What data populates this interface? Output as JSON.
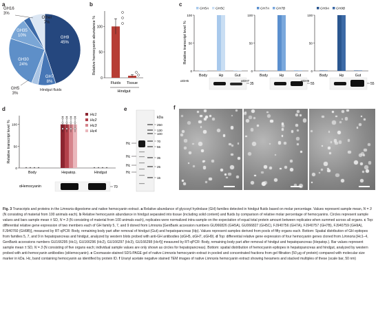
{
  "panels": {
    "a": {
      "letter": "a",
      "footer": "Hindgut fluids",
      "slices": [
        {
          "name": "GH9",
          "pct": "45%",
          "value": 45,
          "color": "#25477e"
        },
        {
          "name": "GH7",
          "pct": "8%",
          "value": 8,
          "color": "#4777b6"
        },
        {
          "name": "GH5",
          "pct": "3%",
          "value": 3,
          "color": "#a9c4e4"
        },
        {
          "name": "GH30",
          "pct": "24%",
          "value": 24,
          "color": "#5e8fc8"
        },
        {
          "name": "GH35",
          "pct": "10%",
          "value": 10,
          "color": "#7aa6d6"
        },
        {
          "name": "GH16",
          "pct": "3%",
          "value": 3,
          "color": "#3b6aa8"
        },
        {
          "name": "Other",
          "pct": "7%",
          "value": 7,
          "color": "#dbe6f3"
        }
      ]
    },
    "b": {
      "letter": "b",
      "ylabel": "Relative hemocyanin abundance %",
      "group": "Hindgut",
      "categories": [
        "Fluids",
        "Tissue"
      ],
      "ticks": [
        "0",
        "50",
        "100"
      ]
    },
    "c": {
      "letter": "c",
      "ylabel": "Relative transcript level %",
      "ticks": [
        "0",
        "50",
        "100"
      ],
      "categories": [
        "Body",
        "Hp",
        "Gut"
      ],
      "legend": [
        [
          "GH5A",
          "GH5C"
        ],
        [
          "GH7A",
          "GH7B"
        ],
        [
          "GH9A",
          "GH9B"
        ]
      ],
      "blots": [
        {
          "label": "αGH5",
          "marker": "35"
        },
        {
          "label": "αGH7",
          "marker": "55"
        },
        {
          "label": "αGH9",
          "marker": "55"
        }
      ]
    },
    "d": {
      "letter": "d",
      "ylabel": "Relative transcript level %",
      "ticks": [
        "0",
        "50",
        "100"
      ],
      "categories": [
        "Body",
        "Hepatop.",
        "Hindgut"
      ],
      "legend": [
        "Hc1",
        "Hc2",
        "Hc3",
        "Hc4"
      ],
      "blot_label": "αHemocyanin",
      "marker": "70"
    },
    "e": {
      "letter": "e",
      "unit": "kDa",
      "markers": [
        "250",
        "130",
        "100",
        "70",
        "55",
        "35",
        "25",
        "15"
      ],
      "hc_labels": [
        "Hc",
        "Hc",
        "Hc",
        "Hc"
      ]
    },
    "f": {
      "letter": "f"
    }
  },
  "chart_data": [
    {
      "type": "pie",
      "labels": [
        "GH9",
        "GH7",
        "GH5",
        "GH30",
        "GH35",
        "GH16",
        "Other"
      ],
      "values": [
        45,
        8,
        3,
        24,
        10,
        3,
        7
      ]
    },
    {
      "type": "bar",
      "categories": [
        "Fluids",
        "Tissue"
      ],
      "values": [
        100,
        4
      ],
      "errors": [
        15,
        2
      ],
      "ylim": [
        0,
        130
      ],
      "ylabel": "Relative hemocyanin abundance %"
    },
    {
      "type": "bar",
      "categories": [
        "Body",
        "Hp",
        "Gut"
      ],
      "series": [
        {
          "name": "GH5A",
          "values": [
            0,
            100,
            0
          ]
        },
        {
          "name": "GH5C",
          "values": [
            0,
            100,
            0
          ]
        },
        {
          "name": "GH7A",
          "values": [
            0,
            100,
            0
          ]
        },
        {
          "name": "GH7B",
          "values": [
            0,
            100,
            0
          ]
        },
        {
          "name": "GH9A",
          "values": [
            0,
            100,
            0
          ]
        },
        {
          "name": "GH9B",
          "values": [
            0,
            100,
            0
          ]
        }
      ],
      "ylim": [
        0,
        100
      ]
    },
    {
      "type": "bar",
      "categories": [
        "Body",
        "Hepatop.",
        "Hindgut"
      ],
      "series": [
        {
          "name": "Hc1",
          "values": [
            0,
            100,
            0
          ]
        },
        {
          "name": "Hc2",
          "values": [
            0,
            100,
            0
          ]
        },
        {
          "name": "Hc3",
          "values": [
            0,
            100,
            0
          ]
        },
        {
          "name": "Hc4",
          "values": [
            0,
            100,
            0
          ]
        }
      ],
      "ylim": [
        0,
        120
      ]
    }
  ],
  "caption": {
    "title": "Fig. 3",
    "lead": "Transcripts and proteins in the",
    "species": "Limnoria",
    "lead_rest": "digestome and native hemocyanin extract.",
    "a_letter": "a",
    "a_text": "Relative abundance of glycosyl hydrolase (GH) families detected in hindgut fluids based on molar percentage. Values represent sample mean,",
    "n_eq_3": "N = 3",
    "a_text2": "(N consisting of material from 100 animals each).",
    "b_letter": "b",
    "b_text": "Relative hemocyanin abundance in hindgut separated into tissue (including solid content) and fluids by comparison of relative molar percentage of hemocyanins. Circles represent sample values and bars sample mean ± SD,",
    "b_text2": "(N consisting of material from 100 animals each), replicates were normalized intra-sample on the expectation of equal total protein amount between replicates when summed across all organs.",
    "c_letter": "c",
    "c_text": "Top: differential relative gene expression of two members each of GH family 5, 7, and 9 doned from",
    "c_text2": "[GenBank accession numbers GU066826 (GH5A), GU066827 (GH5C), FJ940756 (GH7A), FJ940757 (GH7B), FJ940759 (GH9A), FJ940760 (GH9B)], measured by RT-qPCR: Body, remaining body part after removal of hindgut (Gut) and hepatopancreas (Hp). Values represent samples derived from pools of fifty organs each. Bottom: Spatial distribution of GH epitopes from families 5, 7, and 9 in hepatopancreas and hindgut, analyzed by western blots probed with anti-GH antibodies (αGH5, αGH7, αGH9).",
    "d_letter": "d",
    "d_text": "Top: differential relative gene expression of four hemocyanin genes cloned from",
    "d_text2": "[Hc1–4, GenBank accessions numbers GU166295 (Hc1), GU166296 (Hc2), GU166297 (Hc3), GU166298 (Hc4)] measured by RT-qPCR: Body, remaining body part after removal of hindgut and hepatopancreas (Hepatop.). Bar values represent sample mean ± SD,",
    "d_text3": "(N consisting of five organs each; individual sample values are only shown as circles for hepatopancreas). Bottom: spatial distribution of hemocyanin epitopes in hepatopancreas and hindgut, analyzed by western probed with anti-hemocyanin antibodies (αHemocyanin).",
    "e_letter": "e",
    "e_text": "Coomassie-stained SDS-PAGE gel of native",
    "e_text2": "hemocyanin extract in pooled and concentrated fractions from gel filtration (50 µg of protein) compared with molecular size marker in kDa. Hc, band containing hemocyanin as identified by protein ID.",
    "f_letter": "f",
    "f_text": "Uranyl acetate negative stained TEM images of native",
    "f_text2": "hemocyanin extract showing hexamers and stacked multiples of these (scale bar, 50 nm)"
  }
}
